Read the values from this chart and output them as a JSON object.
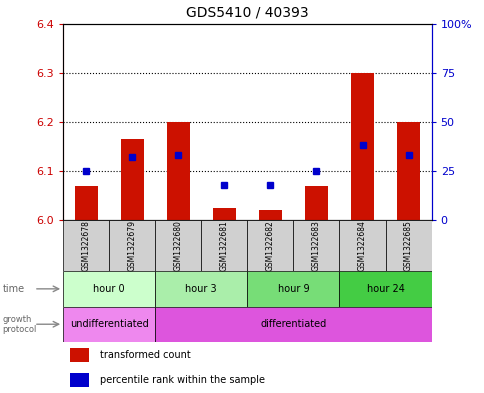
{
  "title": "GDS5410 / 40393",
  "samples": [
    "GSM1322678",
    "GSM1322679",
    "GSM1322680",
    "GSM1322681",
    "GSM1322682",
    "GSM1322683",
    "GSM1322684",
    "GSM1322685"
  ],
  "transformed_count": [
    6.07,
    6.165,
    6.2,
    6.025,
    6.02,
    6.07,
    6.3,
    6.2
  ],
  "percentile_rank": [
    25,
    32,
    33,
    18,
    18,
    25,
    38,
    33
  ],
  "ylim_left": [
    6.0,
    6.4
  ],
  "ylim_right": [
    0,
    100
  ],
  "yticks_left": [
    6.0,
    6.1,
    6.2,
    6.3,
    6.4
  ],
  "yticks_right": [
    0,
    25,
    50,
    75,
    100
  ],
  "ytick_labels_right": [
    "0",
    "25",
    "50",
    "75",
    "100%"
  ],
  "time_groups": [
    {
      "label": "hour 0",
      "start": 0,
      "end": 2,
      "color": "#ccffcc"
    },
    {
      "label": "hour 3",
      "start": 2,
      "end": 4,
      "color": "#aaeeaa"
    },
    {
      "label": "hour 9",
      "start": 4,
      "end": 6,
      "color": "#77dd77"
    },
    {
      "label": "hour 24",
      "start": 6,
      "end": 8,
      "color": "#44cc44"
    }
  ],
  "growth_groups": [
    {
      "label": "undifferentiated",
      "start": 0,
      "end": 2,
      "color": "#ee88ee"
    },
    {
      "label": "differentiated",
      "start": 2,
      "end": 8,
      "color": "#dd55dd"
    }
  ],
  "bar_color": "#cc1100",
  "dot_color": "#0000cc",
  "bar_width": 0.5,
  "baseline": 6.0,
  "sample_bg": "#d0d0d0",
  "axis_left_color": "#cc0000",
  "axis_right_color": "#0000cc"
}
